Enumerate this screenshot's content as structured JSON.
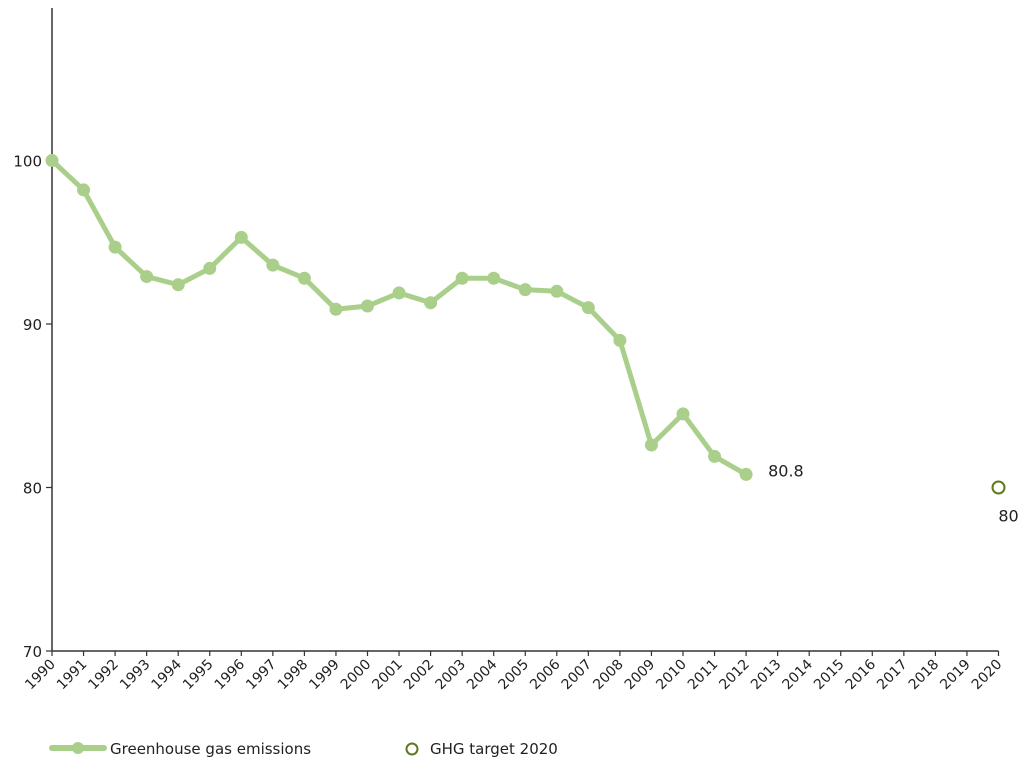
{
  "chart_data": {
    "type": "line",
    "title": "",
    "xlabel": "",
    "ylabel": "",
    "ylim": [
      70,
      110
    ],
    "y_ticks": [
      70,
      80,
      90,
      100
    ],
    "x_categories": [
      "1990",
      "1991",
      "1992",
      "1993",
      "1994",
      "1995",
      "1996",
      "1997",
      "1998",
      "1999",
      "2000",
      "2001",
      "2002",
      "2003",
      "2004",
      "2005",
      "2006",
      "2007",
      "2008",
      "2009",
      "2010",
      "2011",
      "2012",
      "2013",
      "2014",
      "2015",
      "2016",
      "2017",
      "2018",
      "2019",
      "2020"
    ],
    "grid": false,
    "legend_position": "bottom-left",
    "series": [
      {
        "name": "Greenhouse gas emissions",
        "color": "#a9cf8b",
        "marker": "filled-circle",
        "x": [
          "1990",
          "1991",
          "1992",
          "1993",
          "1994",
          "1995",
          "1996",
          "1997",
          "1998",
          "1999",
          "2000",
          "2001",
          "2002",
          "2003",
          "2004",
          "2005",
          "2006",
          "2007",
          "2008",
          "2009",
          "2010",
          "2011",
          "2012"
        ],
        "values": [
          100,
          98.2,
          94.7,
          92.9,
          92.4,
          93.4,
          95.3,
          93.6,
          92.8,
          90.9,
          91.1,
          91.9,
          91.3,
          92.8,
          92.8,
          92.1,
          92.0,
          91.0,
          89.0,
          82.6,
          84.5,
          81.9,
          80.8
        ],
        "end_label": "80.8"
      },
      {
        "name": "GHG target 2020",
        "color": "#5d7a1e",
        "marker": "open-circle",
        "x": [
          "2020"
        ],
        "values": [
          80
        ],
        "point_label": "80"
      }
    ]
  }
}
